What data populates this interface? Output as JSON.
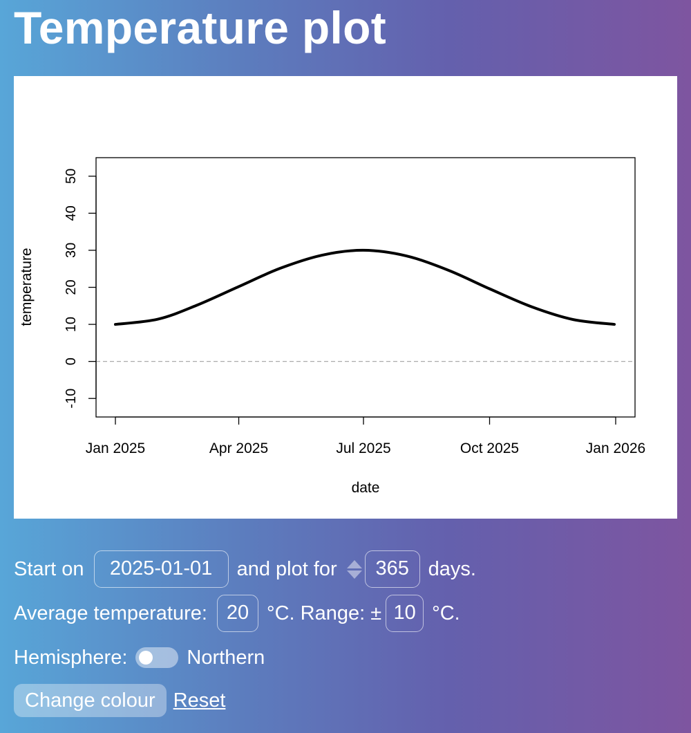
{
  "page": {
    "title": "Temperature plot"
  },
  "chart_data": {
    "type": "line",
    "xlabel": "date",
    "ylabel": "temperature",
    "x_start": "2025-01-01",
    "x_end": "2026-01-01",
    "xlim": [
      "2025-01-01",
      "2026-01-01"
    ],
    "ylim": [
      -15,
      55
    ],
    "x_ticks": [
      {
        "date": "2025-01-01",
        "label": "Jan 2025"
      },
      {
        "date": "2025-04-01",
        "label": "Apr 2025"
      },
      {
        "date": "2025-07-01",
        "label": "Jul 2025"
      },
      {
        "date": "2025-10-01",
        "label": "Oct 2025"
      },
      {
        "date": "2026-01-01",
        "label": "Jan 2026"
      }
    ],
    "y_ticks": [
      -10,
      0,
      10,
      20,
      30,
      40,
      50
    ],
    "series": [
      {
        "color": "#000000",
        "x": [
          "2025-01-01",
          "2025-02-01",
          "2025-03-01",
          "2025-04-01",
          "2025-05-01",
          "2025-06-01",
          "2025-07-01",
          "2025-08-01",
          "2025-09-01",
          "2025-10-01",
          "2025-11-01",
          "2025-12-01",
          "2025-12-31"
        ],
        "y": [
          10,
          11.4,
          15.1,
          20.2,
          25.1,
          28.7,
          30,
          28.5,
          24.6,
          19.6,
          14.7,
          11.3,
          10
        ]
      }
    ],
    "reference_lines": [
      {
        "orientation": "horizontal",
        "y": 0,
        "style": "dashed",
        "color": "#aaaaaa"
      }
    ]
  },
  "controls": {
    "start_label": "Start on",
    "start_date": "2025-01-01",
    "plot_for_label": "and plot for",
    "days_value": "365",
    "days_label": "days.",
    "avg_label": "Average temperature:",
    "avg_value": "20",
    "range_label": "°C. Range: ±",
    "range_value": "10",
    "unit_label": "°C.",
    "hemisphere_label": "Hemisphere:",
    "hemisphere_value": "Northern",
    "change_colour_label": "Change colour",
    "reset_label": "Reset"
  }
}
